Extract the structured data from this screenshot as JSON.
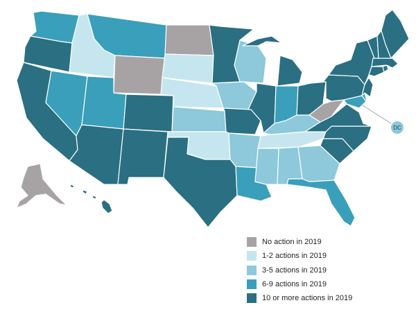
{
  "legend": [
    {
      "key": "none",
      "label": "No action in 2019",
      "color": "#a7a3a4"
    },
    {
      "key": "low",
      "label": "1-2 actions in 2019",
      "color": "#c6e6ef"
    },
    {
      "key": "mid",
      "label": "3-5 actions in 2019",
      "color": "#8dc8db"
    },
    {
      "key": "high",
      "label": "6-9 actions in 2019",
      "color": "#3a9fba"
    },
    {
      "key": "top",
      "label": "10 or more actions in 2019",
      "color": "#2a6f82"
    }
  ],
  "callout": {
    "label": "DC",
    "category": "mid"
  },
  "states": {
    "WA": "high",
    "OR": "top",
    "CA": "top",
    "ID": "low",
    "NV": "high",
    "MT": "high",
    "WY": "none",
    "UT": "high",
    "AZ": "top",
    "CO": "top",
    "NM": "top",
    "ND": "none",
    "SD": "low",
    "NE": "low",
    "KS": "mid",
    "OK": "low",
    "TX": "top",
    "MN": "top",
    "IA": "mid",
    "MO": "top",
    "AR": "mid",
    "LA": "high",
    "WI": "mid",
    "IL": "top",
    "MI": "top",
    "IN": "high",
    "OH": "top",
    "KY": "mid",
    "TN": "low",
    "MS": "mid",
    "AL": "mid",
    "GA": "mid",
    "FL": "high",
    "SC": "top",
    "NC": "top",
    "VA": "top",
    "WV": "none",
    "PA": "top",
    "NY": "top",
    "MD": "high",
    "DE": "high",
    "NJ": "top",
    "CT": "top",
    "RI": "top",
    "MA": "top",
    "VT": "top",
    "NH": "top",
    "ME": "top",
    "AK": "none",
    "HI": "top"
  }
}
